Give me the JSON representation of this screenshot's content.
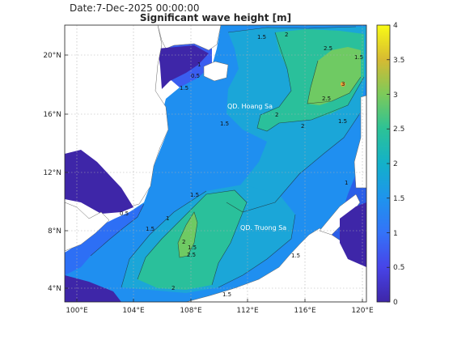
{
  "header": {
    "date": "Date:7-Dec-2025 00:00:00",
    "title": "Significant wave height [m]"
  },
  "map": {
    "lon_range": [
      99,
      120.3
    ],
    "lat_range": [
      3,
      22
    ],
    "lon_ticks": [
      "100°E",
      "104°E",
      "108°E",
      "112°E",
      "116°E",
      "120°E"
    ],
    "lat_ticks": [
      "4°N",
      "8°N",
      "12°N",
      "16°N",
      "20°N"
    ],
    "grid": "dotted",
    "labels": {
      "paracel": "QD. Hoang Sa",
      "spratly": "QD. Truong Sa"
    },
    "contour_labels": [
      "1.5",
      "2",
      "2.5",
      "3",
      "1",
      "0.5",
      "1.5",
      "2",
      "2",
      "2.5",
      "1.5",
      "1.5",
      "1.5",
      "1",
      "0.5",
      "1.5",
      "2",
      "1.5",
      "2.5",
      "1.5",
      "2",
      "1.5",
      "1.5",
      "1"
    ]
  },
  "colorbar": {
    "range": [
      0,
      4
    ],
    "ticks": [
      "0",
      "0.5",
      "1",
      "1.5",
      "2",
      "2.5",
      "3",
      "3.5",
      "4"
    ],
    "colormap": "parula",
    "colors": [
      "#3e26a8",
      "#4744e8",
      "#3473f8",
      "#1e94ed",
      "#13b1c9",
      "#2cc296",
      "#7cca5a",
      "#d6ba32",
      "#f9fb15"
    ]
  }
}
